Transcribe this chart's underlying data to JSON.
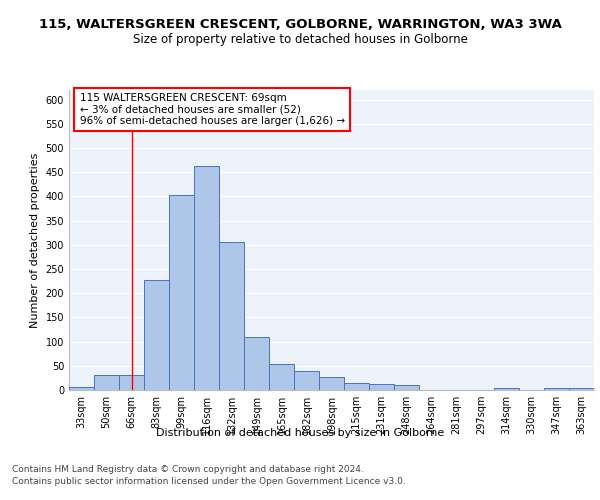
{
  "title_line1": "115, WALTERSGREEN CRESCENT, GOLBORNE, WARRINGTON, WA3 3WA",
  "title_line2": "Size of property relative to detached houses in Golborne",
  "xlabel": "Distribution of detached houses by size in Golborne",
  "ylabel": "Number of detached properties",
  "footer_line1": "Contains HM Land Registry data © Crown copyright and database right 2024.",
  "footer_line2": "Contains public sector information licensed under the Open Government Licence v3.0.",
  "categories": [
    "33sqm",
    "50sqm",
    "66sqm",
    "83sqm",
    "99sqm",
    "116sqm",
    "132sqm",
    "149sqm",
    "165sqm",
    "182sqm",
    "198sqm",
    "215sqm",
    "231sqm",
    "248sqm",
    "264sqm",
    "281sqm",
    "297sqm",
    "314sqm",
    "330sqm",
    "347sqm",
    "363sqm"
  ],
  "values": [
    7,
    30,
    30,
    228,
    402,
    463,
    305,
    110,
    53,
    40,
    27,
    15,
    13,
    10,
    0,
    0,
    0,
    5,
    0,
    5,
    5
  ],
  "bar_color": "#aec6e8",
  "bar_edge_color": "#4472c4",
  "annotation_line1": "115 WALTERSGREEN CRESCENT: 69sqm",
  "annotation_line2": "← 3% of detached houses are smaller (52)",
  "annotation_line3": "96% of semi-detached houses are larger (1,626) →",
  "vline_x_index": 2.0,
  "ylim": [
    0,
    620
  ],
  "yticks": [
    0,
    50,
    100,
    150,
    200,
    250,
    300,
    350,
    400,
    450,
    500,
    550,
    600
  ],
  "bg_color": "#eef2fa",
  "grid_color": "#ffffff",
  "title1_fontsize": 9.5,
  "title2_fontsize": 8.5,
  "axis_label_fontsize": 8,
  "tick_fontsize": 7,
  "footer_fontsize": 6.5,
  "annotation_fontsize": 7.5
}
